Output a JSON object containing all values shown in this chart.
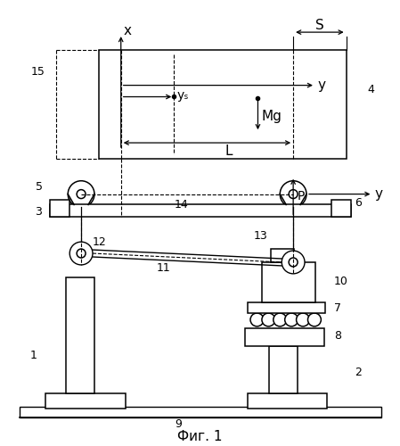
{
  "title": "Фиг. 1",
  "background_color": "#ffffff",
  "line_color": "#000000",
  "fig_width": 4.49,
  "fig_height": 5.0,
  "labels": {
    "x_axis": "x",
    "y_axis": "y",
    "y_axis2": "y",
    "ys": "yₛ",
    "S": "S",
    "L": "L",
    "Mg": "Mg",
    "P": "P",
    "n1": "1",
    "n2": "2",
    "n3": "3",
    "n4": "4",
    "n5": "5",
    "n6": "6",
    "n7": "7",
    "n8": "8",
    "n9": "9",
    "n10": "10",
    "n11": "11",
    "n12": "12",
    "n13": "13",
    "n14": "14",
    "n15": "15"
  }
}
